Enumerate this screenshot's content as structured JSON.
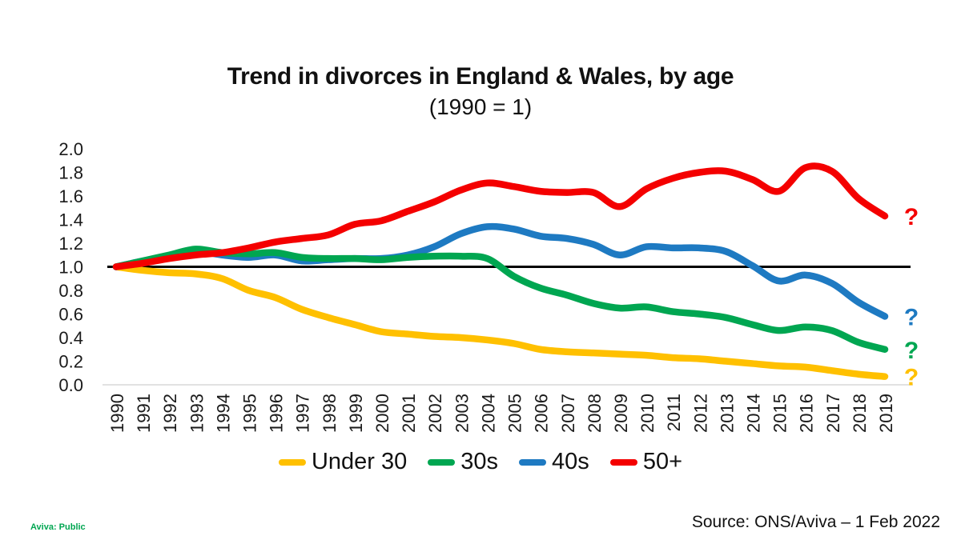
{
  "title": "Trend in divorces in England & Wales, by age",
  "subtitle": "(1990 = 1)",
  "footer": {
    "classification": "Aviva: Public",
    "classification_color": "#00A651",
    "source": "Source: ONS/Aviva – 1 Feb 2022"
  },
  "chart_data": {
    "type": "line",
    "title": "Trend in divorces in England & Wales, by age",
    "subtitle": "(1990 = 1)",
    "x": [
      1990,
      1991,
      1992,
      1993,
      1994,
      1995,
      1996,
      1997,
      1998,
      1999,
      2000,
      2001,
      2002,
      2003,
      2004,
      2005,
      2006,
      2007,
      2008,
      2009,
      2010,
      2011,
      2012,
      2013,
      2014,
      2015,
      2016,
      2017,
      2018,
      2019
    ],
    "ylim": [
      0.0,
      2.0
    ],
    "ytick_step": 0.2,
    "grid": false,
    "legend_position": "bottom",
    "baseline": {
      "value": 1.0,
      "color": "#000000"
    },
    "axis_color": "#D9D9D9",
    "text_color": "#1a1a1a",
    "series": [
      {
        "name": "Under 30",
        "color": "#FFC000",
        "end_label": "?",
        "values": [
          1.0,
          0.97,
          0.95,
          0.94,
          0.9,
          0.8,
          0.74,
          0.64,
          0.57,
          0.51,
          0.45,
          0.43,
          0.41,
          0.4,
          0.38,
          0.35,
          0.3,
          0.28,
          0.27,
          0.26,
          0.25,
          0.23,
          0.22,
          0.2,
          0.18,
          0.16,
          0.15,
          0.12,
          0.09,
          0.07
        ]
      },
      {
        "name": "30s",
        "color": "#00A651",
        "end_label": "?",
        "values": [
          1.0,
          1.05,
          1.1,
          1.15,
          1.12,
          1.11,
          1.12,
          1.08,
          1.07,
          1.07,
          1.06,
          1.08,
          1.09,
          1.09,
          1.07,
          0.92,
          0.82,
          0.76,
          0.69,
          0.65,
          0.66,
          0.62,
          0.6,
          0.57,
          0.51,
          0.46,
          0.49,
          0.46,
          0.36,
          0.3
        ]
      },
      {
        "name": "40s",
        "color": "#1E7AC2",
        "end_label": "?",
        "values": [
          1.0,
          1.05,
          1.09,
          1.13,
          1.1,
          1.08,
          1.1,
          1.05,
          1.06,
          1.07,
          1.07,
          1.1,
          1.17,
          1.28,
          1.34,
          1.32,
          1.26,
          1.24,
          1.19,
          1.1,
          1.17,
          1.16,
          1.16,
          1.13,
          1.01,
          0.88,
          0.93,
          0.86,
          0.7,
          0.58
        ]
      },
      {
        "name": "50+",
        "color": "#F40000",
        "end_label": "?",
        "values": [
          1.0,
          1.03,
          1.07,
          1.1,
          1.12,
          1.16,
          1.21,
          1.24,
          1.27,
          1.36,
          1.39,
          1.47,
          1.55,
          1.65,
          1.71,
          1.68,
          1.64,
          1.63,
          1.63,
          1.51,
          1.66,
          1.75,
          1.8,
          1.81,
          1.74,
          1.64,
          1.84,
          1.81,
          1.58,
          1.43
        ]
      }
    ]
  }
}
